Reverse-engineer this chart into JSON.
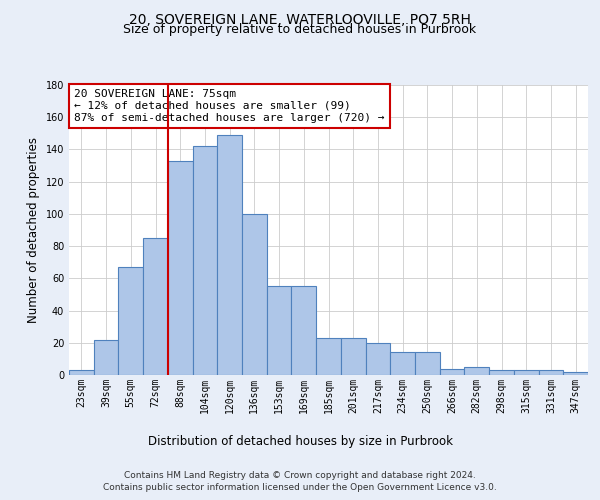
{
  "title_line1": "20, SOVEREIGN LANE, WATERLOOVILLE, PO7 5RH",
  "title_line2": "Size of property relative to detached houses in Purbrook",
  "xlabel": "Distribution of detached houses by size in Purbrook",
  "ylabel": "Number of detached properties",
  "categories": [
    "23sqm",
    "39sqm",
    "55sqm",
    "72sqm",
    "88sqm",
    "104sqm",
    "120sqm",
    "136sqm",
    "153sqm",
    "169sqm",
    "185sqm",
    "201sqm",
    "217sqm",
    "234sqm",
    "250sqm",
    "266sqm",
    "282sqm",
    "298sqm",
    "315sqm",
    "331sqm",
    "347sqm"
  ],
  "values": [
    3,
    22,
    67,
    85,
    133,
    142,
    149,
    100,
    55,
    55,
    23,
    23,
    20,
    14,
    14,
    4,
    5,
    3,
    3,
    3,
    2
  ],
  "bar_color": "#aec6e8",
  "bar_edge_color": "#4f81bd",
  "vline_color": "#cc0000",
  "vline_pos": 3.5,
  "annotation_text": "20 SOVEREIGN LANE: 75sqm\n← 12% of detached houses are smaller (99)\n87% of semi-detached houses are larger (720) →",
  "annotation_box_color": "#cc0000",
  "ylim": [
    0,
    180
  ],
  "yticks": [
    0,
    20,
    40,
    60,
    80,
    100,
    120,
    140,
    160,
    180
  ],
  "background_color": "#e8eef8",
  "plot_background": "#ffffff",
  "footer_line1": "Contains HM Land Registry data © Crown copyright and database right 2024.",
  "footer_line2": "Contains public sector information licensed under the Open Government Licence v3.0.",
  "title_fontsize": 10,
  "subtitle_fontsize": 9,
  "axis_label_fontsize": 8.5,
  "tick_fontsize": 7,
  "annotation_fontsize": 8,
  "footer_fontsize": 6.5
}
